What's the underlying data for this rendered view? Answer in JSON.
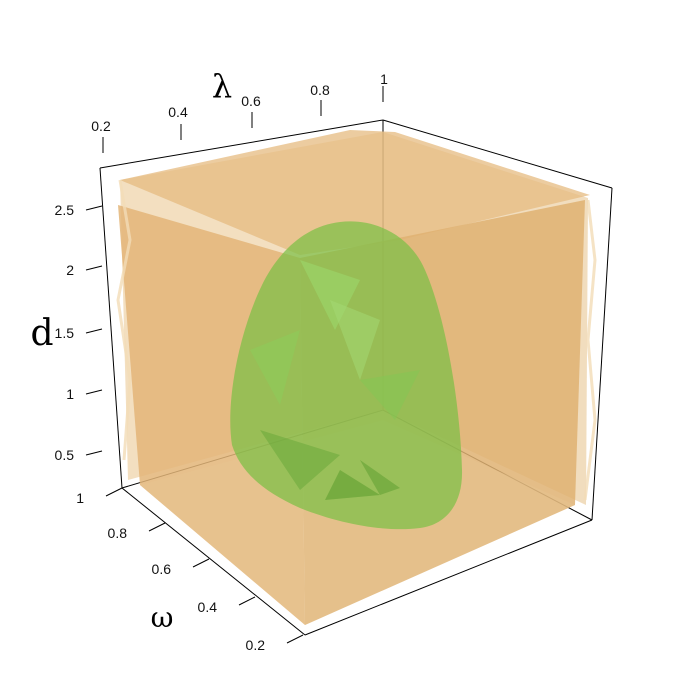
{
  "chart_data": {
    "type": "3d-isosurface",
    "title": "",
    "axes": {
      "lambda": {
        "label": "λ",
        "ticks": [
          "0.2",
          "0.4",
          "0.6",
          "0.8",
          "1"
        ],
        "range": [
          0.2,
          1
        ]
      },
      "d": {
        "label": "d",
        "ticks": [
          "2.5",
          "2",
          "1.5",
          "1",
          "0.5"
        ],
        "range": [
          0,
          2.8
        ]
      },
      "omega": {
        "label": "ω",
        "ticks": [
          "1",
          "0.8",
          "0.6",
          "0.4",
          "0.2"
        ],
        "range": [
          0.2,
          1
        ]
      }
    },
    "surfaces": [
      {
        "name": "",
        "color": "#e2b878",
        "opacity": 0.8
      },
      {
        "name": "",
        "color": "#7cc24a",
        "opacity": 0.75
      }
    ]
  }
}
